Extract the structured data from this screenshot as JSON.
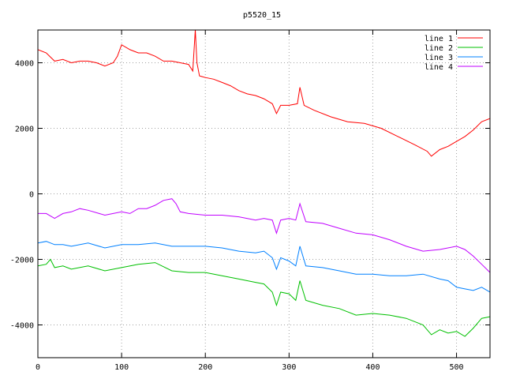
{
  "chart_data": {
    "type": "line",
    "title": "p5520_15",
    "xlabel": "",
    "ylabel": "",
    "xlim": [
      0,
      540
    ],
    "ylim": [
      -5000,
      5000
    ],
    "x_ticks": [
      0,
      100,
      200,
      300,
      400,
      500
    ],
    "y_ticks": [
      -4000,
      -2000,
      0,
      2000,
      4000
    ],
    "grid": true,
    "legend_position": "top-right",
    "series": [
      {
        "name": "line 1",
        "color": "#ff0000",
        "x": [
          0,
          10,
          20,
          30,
          40,
          50,
          60,
          70,
          80,
          90,
          95,
          100,
          110,
          120,
          130,
          140,
          150,
          160,
          170,
          180,
          185,
          188,
          190,
          193,
          200,
          210,
          220,
          230,
          240,
          250,
          260,
          270,
          280,
          285,
          290,
          300,
          310,
          313,
          318,
          330,
          350,
          370,
          390,
          410,
          430,
          450,
          465,
          470,
          480,
          490,
          500,
          510,
          520,
          530,
          540
        ],
        "values": [
          4400,
          4300,
          4050,
          4100,
          4000,
          4050,
          4050,
          4000,
          3900,
          4000,
          4200,
          4550,
          4400,
          4300,
          4300,
          4200,
          4050,
          4050,
          4000,
          3950,
          3750,
          5000,
          4000,
          3600,
          3550,
          3500,
          3400,
          3300,
          3150,
          3050,
          3000,
          2900,
          2750,
          2450,
          2700,
          2700,
          2750,
          3250,
          2700,
          2550,
          2350,
          2200,
          2150,
          2000,
          1750,
          1500,
          1300,
          1150,
          1350,
          1450,
          1600,
          1750,
          1950,
          2200,
          2300
        ]
      },
      {
        "name": "line 2",
        "color": "#00c000",
        "x": [
          0,
          10,
          15,
          20,
          30,
          40,
          60,
          80,
          100,
          120,
          140,
          160,
          180,
          200,
          220,
          240,
          260,
          270,
          280,
          285,
          290,
          300,
          308,
          313,
          320,
          340,
          360,
          380,
          400,
          420,
          440,
          460,
          470,
          480,
          490,
          500,
          510,
          520,
          530,
          540
        ],
        "values": [
          -2200,
          -2150,
          -2000,
          -2250,
          -2200,
          -2300,
          -2200,
          -2350,
          -2250,
          -2150,
          -2100,
          -2350,
          -2400,
          -2400,
          -2500,
          -2600,
          -2700,
          -2750,
          -3000,
          -3400,
          -3000,
          -3050,
          -3250,
          -2650,
          -3250,
          -3400,
          -3500,
          -3700,
          -3650,
          -3700,
          -3800,
          -4000,
          -4300,
          -4150,
          -4250,
          -4200,
          -4350,
          -4100,
          -3800,
          -3750
        ]
      },
      {
        "name": "line 3",
        "color": "#0080ff",
        "x": [
          0,
          10,
          20,
          30,
          40,
          60,
          80,
          100,
          120,
          140,
          160,
          180,
          200,
          220,
          240,
          260,
          270,
          280,
          285,
          290,
          300,
          308,
          313,
          320,
          340,
          360,
          380,
          400,
          420,
          440,
          460,
          480,
          490,
          500,
          510,
          520,
          530,
          540
        ],
        "values": [
          -1500,
          -1450,
          -1550,
          -1550,
          -1600,
          -1500,
          -1650,
          -1550,
          -1550,
          -1500,
          -1600,
          -1600,
          -1600,
          -1650,
          -1750,
          -1800,
          -1750,
          -1950,
          -2300,
          -1950,
          -2050,
          -2200,
          -1600,
          -2200,
          -2250,
          -2350,
          -2450,
          -2450,
          -2500,
          -2500,
          -2450,
          -2600,
          -2650,
          -2850,
          -2900,
          -2950,
          -2850,
          -3000
        ]
      },
      {
        "name": "line 4",
        "color": "#c000ff",
        "x": [
          0,
          10,
          20,
          30,
          40,
          50,
          60,
          80,
          90,
          100,
          110,
          120,
          130,
          140,
          150,
          160,
          165,
          170,
          180,
          200,
          220,
          240,
          260,
          270,
          280,
          285,
          290,
          300,
          308,
          313,
          320,
          340,
          360,
          380,
          400,
          420,
          440,
          460,
          480,
          500,
          510,
          520,
          530,
          540
        ],
        "values": [
          -600,
          -600,
          -750,
          -600,
          -550,
          -450,
          -500,
          -650,
          -600,
          -550,
          -600,
          -450,
          -450,
          -350,
          -200,
          -150,
          -300,
          -550,
          -600,
          -650,
          -650,
          -700,
          -800,
          -750,
          -800,
          -1200,
          -800,
          -750,
          -800,
          -300,
          -850,
          -900,
          -1050,
          -1200,
          -1250,
          -1400,
          -1600,
          -1750,
          -1700,
          -1600,
          -1700,
          -1900,
          -2150,
          -2400
        ]
      }
    ]
  }
}
